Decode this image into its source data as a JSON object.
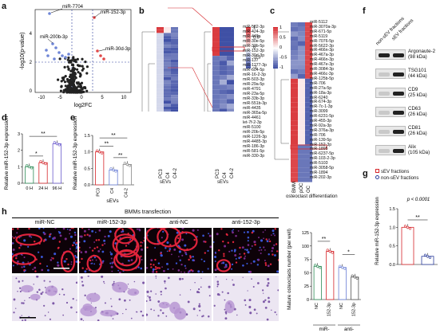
{
  "panels": {
    "a": "a",
    "b": "b",
    "c": "c",
    "d": "d",
    "e": "e",
    "f": "f",
    "g": "g",
    "h": "h"
  },
  "colors": {
    "red": "#d6262b",
    "blue": "#2a3c9b",
    "white": "#ffffff",
    "green": "#2e8b57",
    "gray": "#9a9a9a",
    "purple": "#9b59b6",
    "pink": "#e88aa3"
  },
  "panel_a": {
    "ylabel": "-log10(p-value)",
    "xlabel": "log2FC",
    "labels": [
      "miR-7704",
      "miR-152-3p",
      "miR-200b-3p",
      "miR-30d-3p"
    ],
    "xticks": [
      "-10",
      "-5",
      "0",
      "5",
      "10"
    ],
    "yticks": [
      "0",
      "2",
      "4"
    ]
  },
  "panel_b": {
    "left_columns": [
      "PC3",
      "C4",
      "C4-2"
    ],
    "right_columns": [
      "PC3",
      "C4",
      "C4-2"
    ],
    "left_xlabel": "sEVs",
    "right_xlabel": "sEVs",
    "genes": [
      "miR-582-3p",
      "miR-424-3p",
      "miR-449a",
      "miR-30e-5p",
      "miR-33b-5p",
      "miR-152-3p",
      "miR-30d-3p",
      "miR-137",
      "miR-1277-3p",
      "miR-604-5p",
      "miR-16-2-3p",
      "miR-503-3p",
      "miR-29a-5p",
      "miR-4791",
      "miR-23a-5p",
      "miR-33b-3p",
      "miR-551b-3p",
      "miR-4435",
      "miR-365a-5p",
      "miR-4461",
      "let-7f-2-3p",
      "miR-5100",
      "miR-20b-5p",
      "miR-1226-3p",
      "miR-4485-3p",
      "miR-186-3p",
      "miR-581-5p",
      "miR-330-3p"
    ],
    "scale": [
      "1",
      "0.5",
      "0",
      "-0.5",
      "-1"
    ]
  },
  "panel_c": {
    "columns": [
      "BMM",
      "pOC",
      "OC"
    ],
    "xlabel": "osteoclast differentiation",
    "genes": [
      "miR-5112",
      "miR-3070a-3p",
      "miR-671-5p",
      "miR-5119",
      "miR-7076-5p",
      "miR-5622-3p",
      "miR-466n-3p",
      "miR-467a-3p",
      "miR-466n-3p",
      "miR-467e-3p",
      "miR-3084-3p",
      "miR-466c-3p",
      "miR-125b-5p",
      "miR-706",
      "miR-27a-5p",
      "miR-18a-3p",
      "miR-6240",
      "miR-674-3p",
      "miR-7c-1-3p",
      "miR-3099",
      "miR-6231-5p",
      "miR-455-3p",
      "miR-92a-3p",
      "miR-376a-3p",
      "miR-706",
      "miR-139-5p",
      "miR-152-3p",
      "miR-1895",
      "miR-6237-5p",
      "miR-103-2-3p",
      "miR-5103",
      "miR-3058-5p",
      "miR-1894",
      "miR-202-3p"
    ],
    "scale": [
      "1",
      "0.5",
      "0",
      "-0.5",
      "-1"
    ]
  },
  "panel_d": {
    "ylabel": "Relative miR-152-3p expression",
    "categories": [
      "0 H",
      "24 H",
      "96 H"
    ],
    "values": [
      1.0,
      1.25,
      2.4
    ],
    "ylim": [
      0,
      3
    ],
    "yticks": [
      "0",
      "1",
      "2",
      "3"
    ],
    "sig": [
      "*",
      "**"
    ]
  },
  "panel_e": {
    "ylabel": "Relative miR-152-3p expression",
    "categories": [
      "PC3",
      "C4",
      "C4-2"
    ],
    "values": [
      1.0,
      0.45,
      0.62
    ],
    "ylim": [
      0,
      1.5
    ],
    "yticks": [
      "0.0",
      "0.5",
      "1.0",
      "1.5"
    ],
    "sig": [
      "**",
      "**",
      "**"
    ],
    "xlabel": "sEVs"
  },
  "panel_f": {
    "col1": "non-sEV fractions",
    "col2": "sEV fractions",
    "blots": [
      {
        "name": "Argonaute-2",
        "kda": "(98 kDa)"
      },
      {
        "name": "TSG101",
        "kda": "(44 kDa)"
      },
      {
        "name": "CD9",
        "kda": "(25 kDa)"
      },
      {
        "name": "CD63",
        "kda": "(26 kDa)"
      },
      {
        "name": "CD81",
        "kda": "(26 kDa)"
      },
      {
        "name": "Alix",
        "kda": "(105 kDa)"
      }
    ]
  },
  "panel_g": {
    "legend": [
      "sEV fractions",
      "non-sEV fractions"
    ],
    "pvalue": "p < 0.0001",
    "sig": "**",
    "ylabel": "Relative miR-152-3p expression",
    "values": [
      1.0,
      0.22
    ],
    "ylim": [
      0,
      1.5
    ],
    "yticks": [
      "0.0",
      "0.5",
      "1.0",
      "1.5"
    ]
  },
  "panel_h": {
    "title": "BMMs transfection",
    "groups": [
      "miR-NC",
      "miR-152-3p",
      "anti-NC",
      "anti-152-3p"
    ],
    "ylabel": "Mature osteoclasts number (per well)",
    "xcats": [
      "NC",
      "152-3p",
      "NC",
      "152-3p"
    ],
    "xgroups": [
      "miR-",
      "anti-"
    ],
    "values": [
      62,
      90,
      60,
      42
    ],
    "ylim": [
      0,
      125
    ],
    "yticks": [
      "0",
      "25",
      "50",
      "75",
      "100",
      "125"
    ],
    "sig": [
      "**",
      "*"
    ]
  },
  "chart_data": [
    {
      "type": "bar",
      "panel": "d",
      "categories": [
        "0 H",
        "24 H",
        "96 H"
      ],
      "values": [
        1.0,
        1.25,
        2.4
      ],
      "ylabel": "Relative miR-152-3p expression",
      "ylim": [
        0,
        3
      ]
    },
    {
      "type": "bar",
      "panel": "e",
      "categories": [
        "PC3",
        "C4",
        "C4-2"
      ],
      "values": [
        1.0,
        0.45,
        0.62
      ],
      "ylabel": "Relative miR-152-3p expression",
      "xlabel": "sEVs",
      "ylim": [
        0,
        1.5
      ]
    },
    {
      "type": "bar",
      "panel": "g",
      "categories": [
        "sEV fractions",
        "non-sEV fractions"
      ],
      "values": [
        1.0,
        0.22
      ],
      "ylabel": "Relative miR-152-3p expression",
      "ylim": [
        0,
        1.5
      ]
    },
    {
      "type": "bar",
      "panel": "h",
      "categories": [
        "miR-NC",
        "miR-152-3p",
        "anti-NC",
        "anti-152-3p"
      ],
      "values": [
        62,
        90,
        60,
        42
      ],
      "ylabel": "Mature osteoclasts number (per well)",
      "ylim": [
        0,
        125
      ]
    },
    {
      "type": "scatter",
      "panel": "a",
      "xlabel": "log2FC",
      "ylabel": "-log10(p-value)"
    }
  ]
}
